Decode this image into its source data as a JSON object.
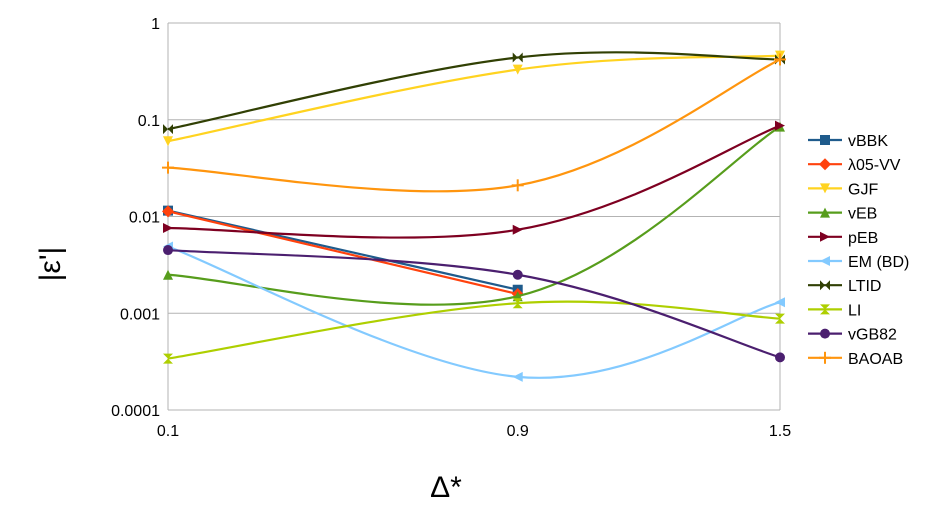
{
  "chart_data": {
    "type": "line",
    "xlabel": "Δ*",
    "ylabel": "|ε'|",
    "y_scale": "log",
    "ylim": [
      0.0001,
      1
    ],
    "x_ticks": [
      "0.1",
      "0.9",
      "1.5"
    ],
    "y_ticks": [
      "1",
      "0.1",
      "0.01",
      "0.001",
      "0.0001"
    ],
    "grid": "horizontal",
    "legend": "right",
    "series": [
      {
        "name": "vBBK",
        "color": "#1f5b8c",
        "marker": "square",
        "x": [
          0.1,
          0.9
        ],
        "values": [
          0.0115,
          0.00175
        ]
      },
      {
        "name": "λ05-VV",
        "color": "#ff420e",
        "marker": "diamond",
        "x": [
          0.1,
          0.9
        ],
        "values": [
          0.0113,
          0.00158
        ]
      },
      {
        "name": "GJF",
        "color": "#ffd320",
        "marker": "triangle-down",
        "x": [
          0.1,
          0.9,
          1.5
        ],
        "values": [
          0.06,
          0.33,
          0.46
        ]
      },
      {
        "name": "vEB",
        "color": "#579d1c",
        "marker": "triangle-up",
        "x": [
          0.1,
          0.9,
          1.5
        ],
        "values": [
          0.0025,
          0.0015,
          0.085
        ]
      },
      {
        "name": "pEB",
        "color": "#7e0021",
        "marker": "triangle-right",
        "x": [
          0.1,
          0.9,
          1.5
        ],
        "values": [
          0.0076,
          0.0073,
          0.087
        ]
      },
      {
        "name": "EM (BD)",
        "color": "#83caff",
        "marker": "triangle-left",
        "x": [
          0.1,
          0.9,
          1.5
        ],
        "values": [
          0.0049,
          0.00022,
          0.0013
        ]
      },
      {
        "name": "LTID",
        "color": "#314004",
        "marker": "bowtie",
        "x": [
          0.1,
          0.9,
          1.5
        ],
        "values": [
          0.08,
          0.44,
          0.42
        ]
      },
      {
        "name": "LI",
        "color": "#aecf00",
        "marker": "hourglass",
        "x": [
          0.1,
          0.9,
          1.5
        ],
        "values": [
          0.00034,
          0.00127,
          0.00088
        ]
      },
      {
        "name": "vGB82",
        "color": "#4b1f6f",
        "marker": "circle",
        "x": [
          0.1,
          0.9,
          1.5
        ],
        "values": [
          0.0045,
          0.0025,
          0.00035
        ]
      },
      {
        "name": "BAOAB",
        "color": "#ff950e",
        "marker": "plus",
        "x": [
          0.1,
          0.9,
          1.5
        ],
        "values": [
          0.032,
          0.021,
          0.42
        ]
      }
    ]
  }
}
